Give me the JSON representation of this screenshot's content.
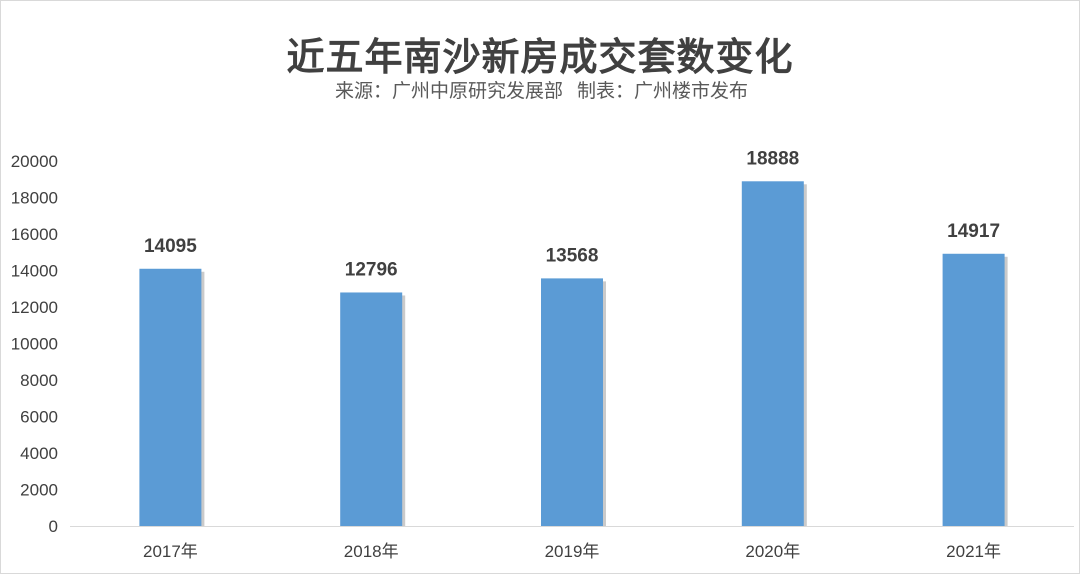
{
  "header": {
    "title": "近五年南沙新房成交套数变化",
    "source": "来源：广州中原研究发展部",
    "maker": "制表：广州楼市发布"
  },
  "colors": {
    "bar": "#5b9bd5",
    "bar_shadow": "#9e9e9e",
    "axis": "#d9d9d9"
  },
  "chart_data": {
    "type": "bar",
    "categories": [
      "2017年",
      "2018年",
      "2019年",
      "2020年",
      "2021年"
    ],
    "values": [
      14095,
      12796,
      13568,
      18888,
      14917
    ],
    "ylim": [
      0,
      20000
    ],
    "yticks": [
      "0",
      "2000",
      "4000",
      "6000",
      "8000",
      "10000",
      "12000",
      "14000",
      "16000",
      "18000",
      "20000"
    ],
    "data_labels": [
      "14095",
      "12796",
      "13568",
      "18888",
      "14917"
    ],
    "xlabel": "",
    "ylabel": "",
    "grid": false,
    "legend": "none"
  }
}
